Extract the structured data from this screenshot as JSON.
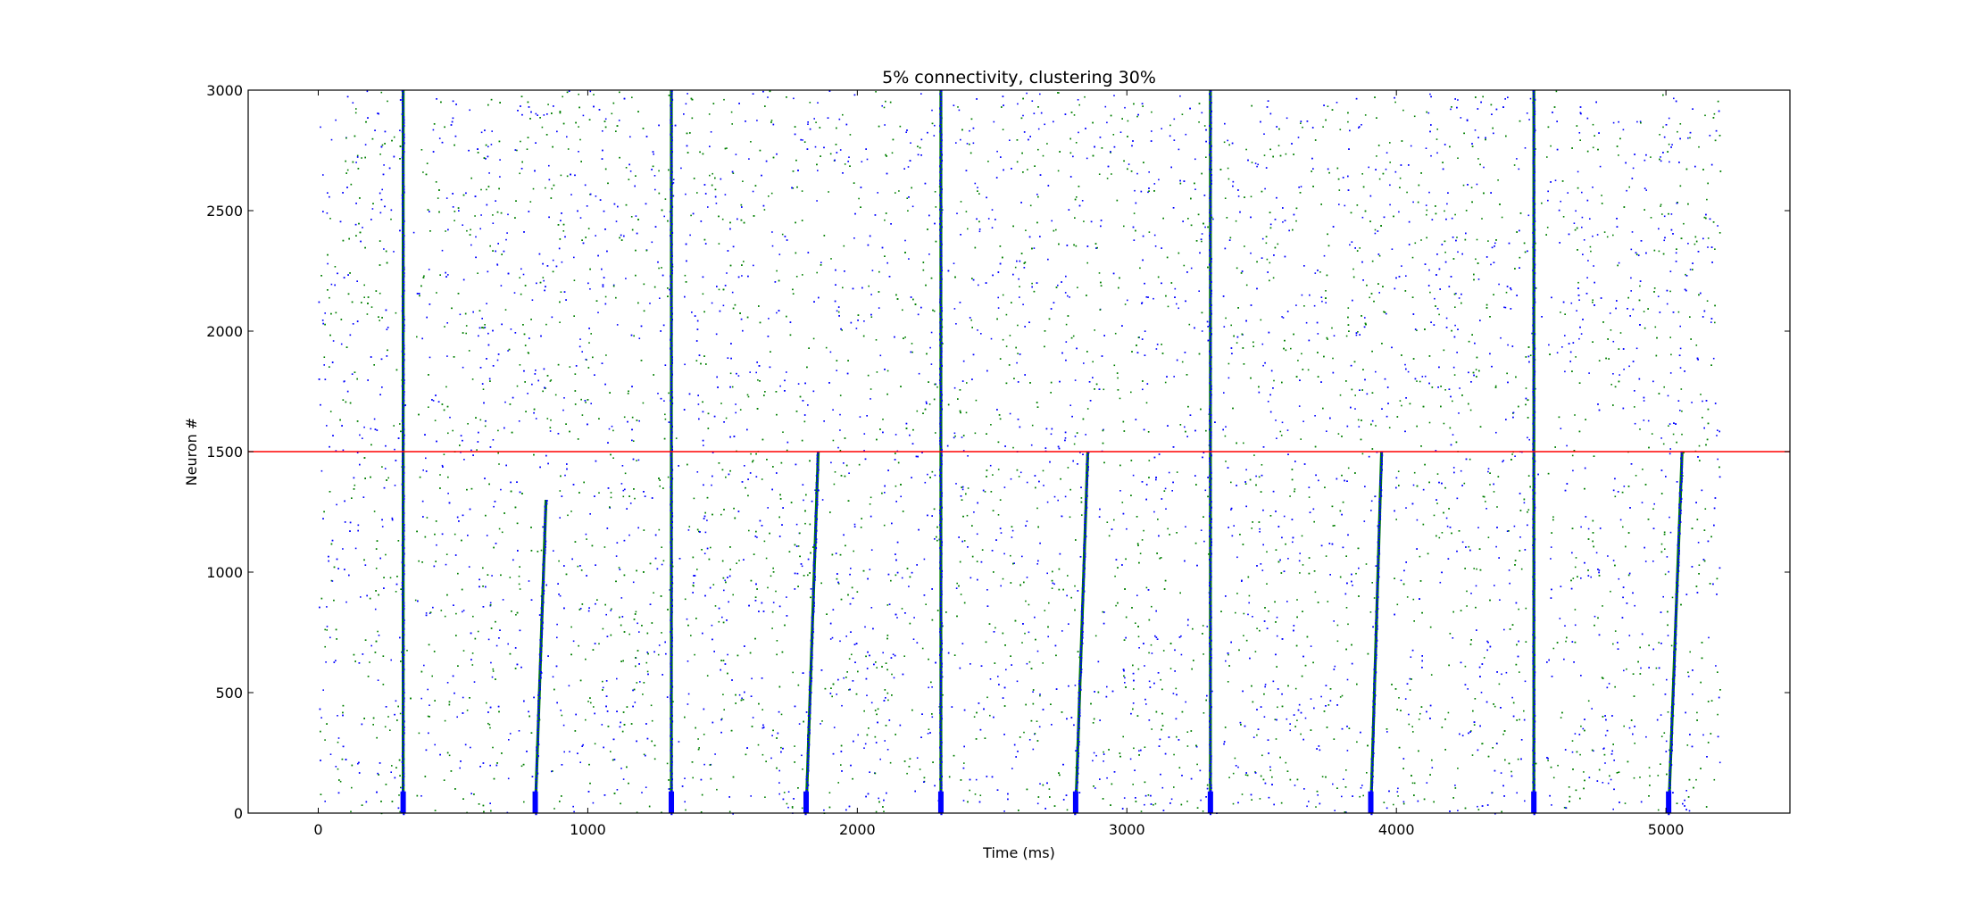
{
  "chart_data": {
    "type": "scatter",
    "title": "5% connectivity, clustering 30%",
    "xlabel": "Time (ms)",
    "ylabel": "Neuron #",
    "xlim": [
      -260,
      5460
    ],
    "ylim": [
      0,
      3000
    ],
    "xticks": [
      0,
      1000,
      2000,
      3000,
      4000,
      5000
    ],
    "yticks": [
      0,
      500,
      1000,
      1500,
      2000,
      2500,
      3000
    ],
    "grid": false,
    "legend": "none",
    "background_spikes": {
      "x_range": [
        0,
        5200
      ],
      "y_range": [
        0,
        3000
      ],
      "count": 9000
    },
    "reference_line": {
      "y": 1500,
      "color": "#ff0000"
    },
    "colors": {
      "series_a": "#0000ff",
      "series_b": "#007f00",
      "line": "#ff0000"
    },
    "bursts": [
      {
        "t": 315,
        "y0": 0,
        "y1": 3000,
        "drift": 0
      },
      {
        "t": 805,
        "y0": 0,
        "y1": 1300,
        "drift": 40
      },
      {
        "t": 1310,
        "y0": 0,
        "y1": 3000,
        "drift": 0
      },
      {
        "t": 1810,
        "y0": 0,
        "y1": 1500,
        "drift": 45
      },
      {
        "t": 2310,
        "y0": 0,
        "y1": 3000,
        "drift": 0
      },
      {
        "t": 2810,
        "y0": 0,
        "y1": 1500,
        "drift": 45
      },
      {
        "t": 3310,
        "y0": 0,
        "y1": 3000,
        "drift": 0
      },
      {
        "t": 3905,
        "y0": 0,
        "y1": 1500,
        "drift": 40
      },
      {
        "t": 4510,
        "y0": 0,
        "y1": 3000,
        "drift": 0
      },
      {
        "t": 5010,
        "y0": 0,
        "y1": 1500,
        "drift": 50
      }
    ]
  }
}
